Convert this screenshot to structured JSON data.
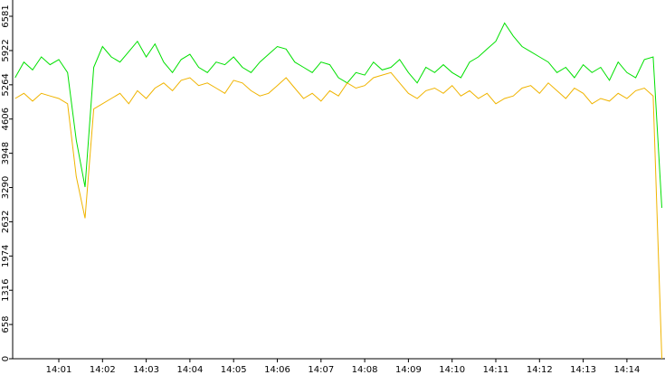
{
  "chart_data": {
    "type": "line",
    "categories": [
      null,
      null,
      null,
      null,
      null,
      "14:01",
      null,
      null,
      null,
      null,
      "14:02",
      null,
      null,
      null,
      null,
      "14:03",
      null,
      null,
      null,
      null,
      "14:04",
      null,
      null,
      null,
      null,
      "14:05",
      null,
      null,
      null,
      null,
      "14:06",
      null,
      null,
      null,
      null,
      "14:07",
      null,
      null,
      null,
      null,
      "14:08",
      null,
      null,
      null,
      null,
      "14:09",
      null,
      null,
      null,
      null,
      "14:10",
      null,
      null,
      null,
      null,
      "14:11",
      null,
      null,
      null,
      null,
      "14:12",
      null,
      null,
      null,
      null,
      "14:13",
      null,
      null,
      null,
      null,
      "14:14",
      null,
      null,
      null,
      null
    ],
    "series": [
      {
        "color": "#00e000",
        "values": [
          5400,
          5700,
          5550,
          5800,
          5650,
          5750,
          5500,
          4200,
          3300,
          5600,
          6000,
          5800,
          5700,
          5900,
          6100,
          5800,
          6050,
          5700,
          5500,
          5750,
          5850,
          5600,
          5500,
          5700,
          5650,
          5800,
          5600,
          5500,
          5700,
          5850,
          6000,
          5950,
          5700,
          5600,
          5500,
          5700,
          5650,
          5400,
          5300,
          5500,
          5450,
          5700,
          5550,
          5600,
          5750,
          5500,
          5300,
          5600,
          5500,
          5650,
          5500,
          5400,
          5700,
          5800,
          5950,
          6100,
          6450,
          6200,
          6000,
          5900,
          5800,
          5700,
          5500,
          5600,
          5400,
          5650,
          5500,
          5600,
          5350,
          5700,
          5500,
          5400,
          5750,
          5800,
          2900
        ]
      },
      {
        "color": "#f0b400",
        "values": [
          5000,
          5100,
          4950,
          5100,
          5050,
          5000,
          4900,
          3500,
          2700,
          4800,
          4900,
          5000,
          5100,
          4900,
          5150,
          5000,
          5200,
          5300,
          5150,
          5350,
          5400,
          5250,
          5300,
          5200,
          5100,
          5350,
          5300,
          5150,
          5050,
          5100,
          5250,
          5400,
          5200,
          5000,
          5100,
          4950,
          5150,
          5050,
          5300,
          5200,
          5250,
          5400,
          5450,
          5500,
          5300,
          5100,
          5000,
          5150,
          5200,
          5100,
          5250,
          5050,
          5150,
          5000,
          5100,
          4900,
          5000,
          5050,
          5200,
          5250,
          5100,
          5300,
          5150,
          5000,
          5200,
          5100,
          4900,
          5000,
          4950,
          5100,
          5000,
          5150,
          5200,
          5050,
          0
        ]
      }
    ],
    "ylim": [
      0,
      6581
    ],
    "yticks": [
      0,
      658,
      1316,
      1974,
      2632,
      3290,
      3948,
      4606,
      5264,
      5922,
      6581
    ]
  }
}
